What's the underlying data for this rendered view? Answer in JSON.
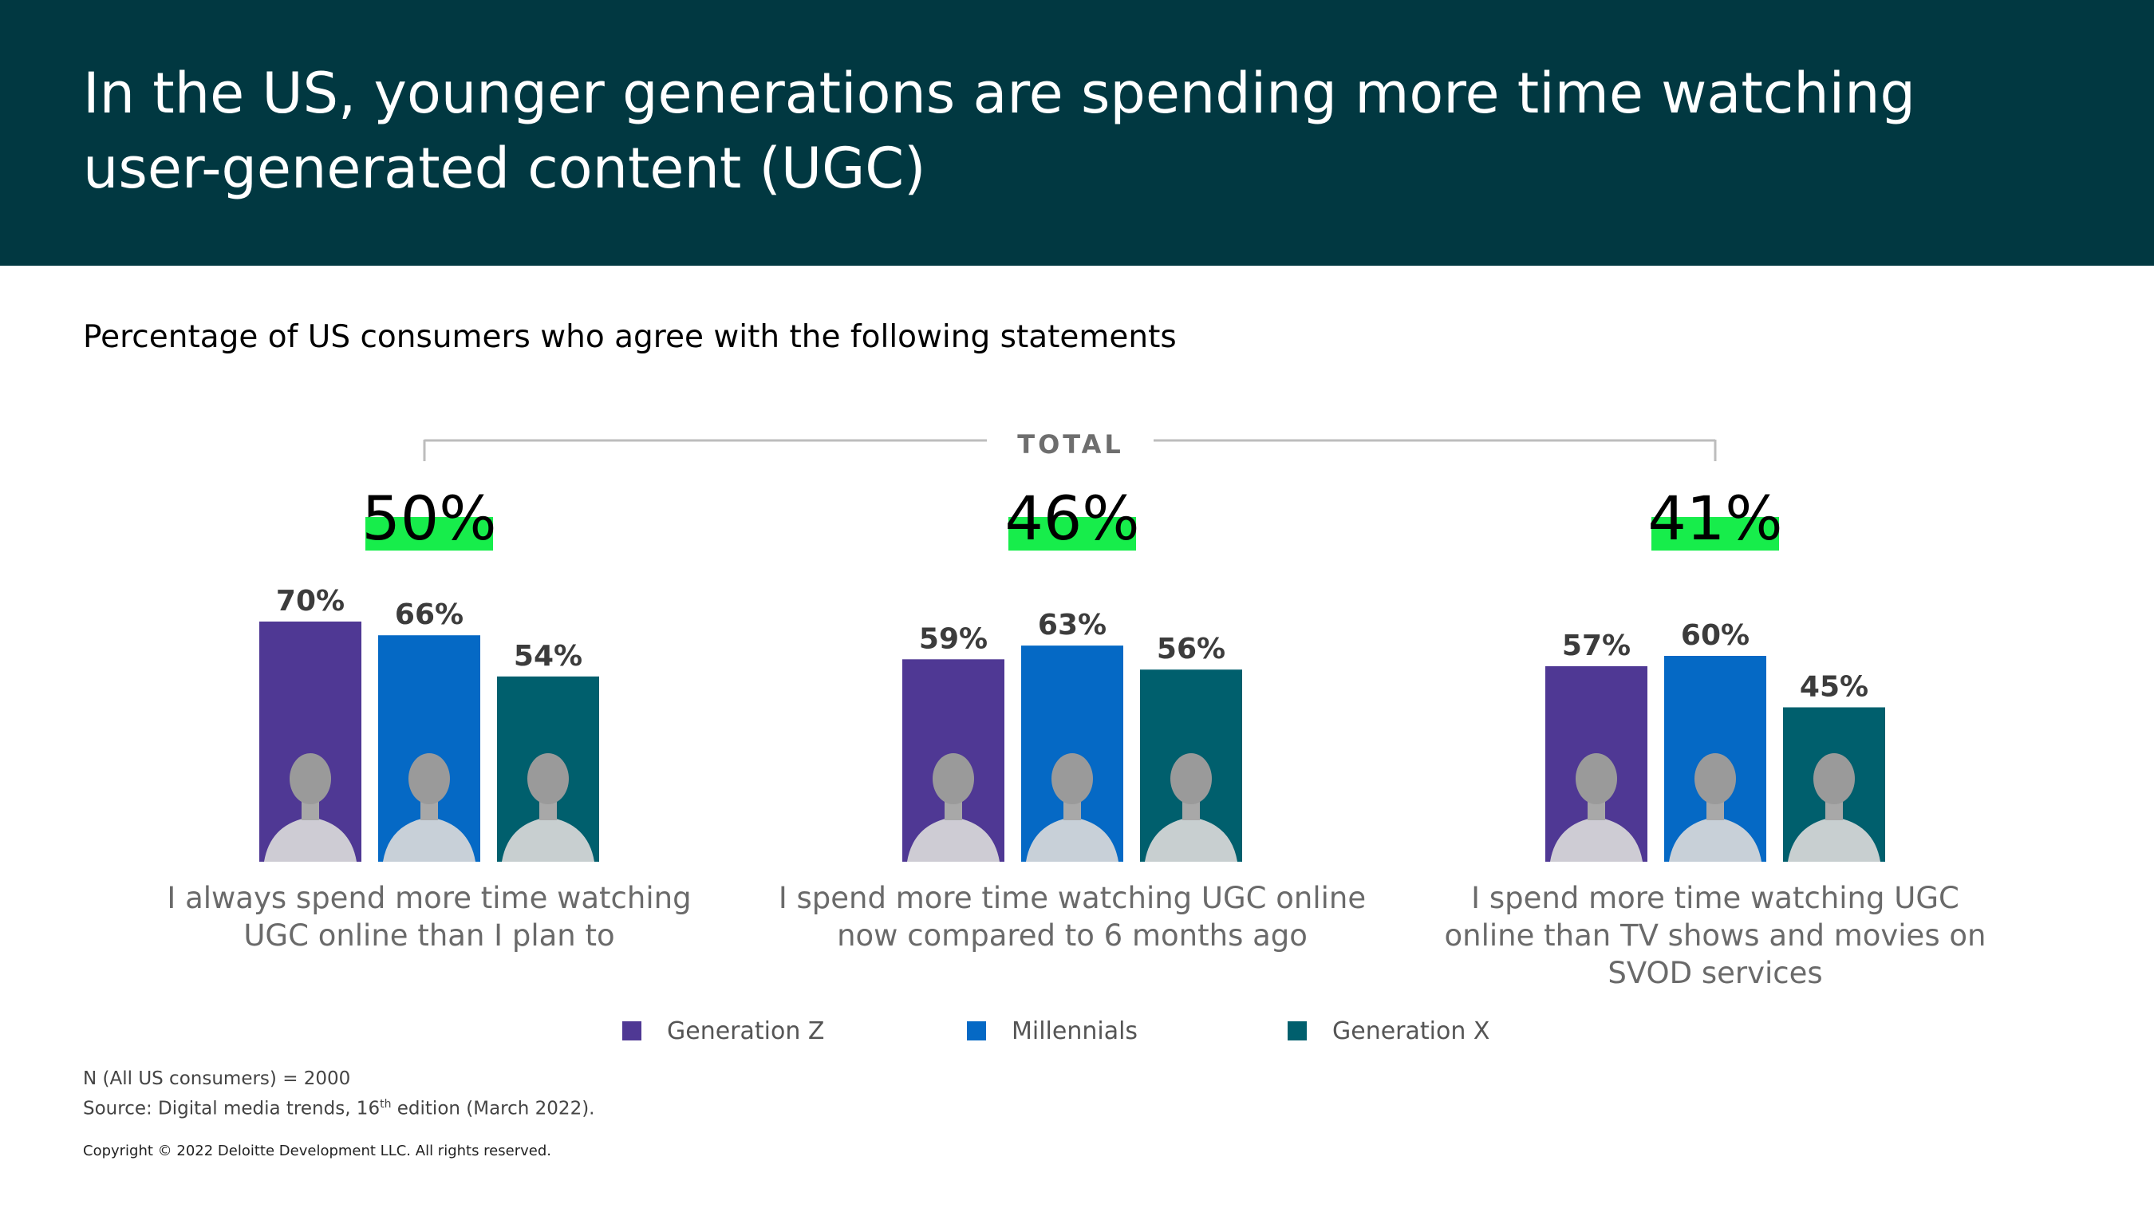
{
  "header": {
    "title": "In the US, younger generations are spending more time watching user-generated content (UGC)"
  },
  "subtitle": "Percentage of US consumers who agree with the following statements",
  "total_label": "TOTAL",
  "colors": {
    "header_bg": "#013841",
    "highlight": "#17ED4B",
    "generation_z": "#4F3894",
    "millennials": "#0569C5",
    "generation_x": "#005F6D"
  },
  "legend": [
    {
      "label": "Generation Z",
      "color": "#4F3894"
    },
    {
      "label": "Millennials",
      "color": "#0569C5"
    },
    {
      "label": "Generation X",
      "color": "#005F6D"
    }
  ],
  "notes": {
    "n_line": "N (All US consumers) = 2000",
    "source_prefix": "Source: Digital media trends, 16",
    "source_sup": "th",
    "source_suffix": " edition (March 2022)."
  },
  "copyright": "Copyright © 2022 Deloitte Development LLC. All rights reserved.",
  "chart_data": {
    "type": "bar",
    "categories": [
      "I always spend more time watching UGC online than I plan to",
      "I spend more time watching UGC online now compared to 6 months ago",
      "I spend more time watching UGC online than TV shows and movies on SVOD services"
    ],
    "category_label_lines": [
      [
        "I always spend more time watching",
        "UGC online than I plan to"
      ],
      [
        "I spend more time watching UGC online",
        "now compared to 6 months ago"
      ],
      [
        "I spend more time watching UGC",
        "online than TV shows and movies on",
        "SVOD services"
      ]
    ],
    "totals": [
      50,
      46,
      41
    ],
    "total_labels": [
      "50%",
      "46%",
      "41%"
    ],
    "series": [
      {
        "name": "Generation Z",
        "values": [
          70,
          59,
          57
        ],
        "labels": [
          "70%",
          "59%",
          "57%"
        ],
        "color": "#4F3894"
      },
      {
        "name": "Millennials",
        "values": [
          66,
          63,
          60
        ],
        "labels": [
          "66%",
          "63%",
          "60%"
        ],
        "color": "#0569C5"
      },
      {
        "name": "Generation X",
        "values": [
          54,
          56,
          45
        ],
        "labels": [
          "54%",
          "56%",
          "45%"
        ],
        "color": "#005F6D"
      }
    ],
    "ylim": [
      0,
      100
    ],
    "unit": "%",
    "grid": false,
    "legend_position": "bottom"
  }
}
